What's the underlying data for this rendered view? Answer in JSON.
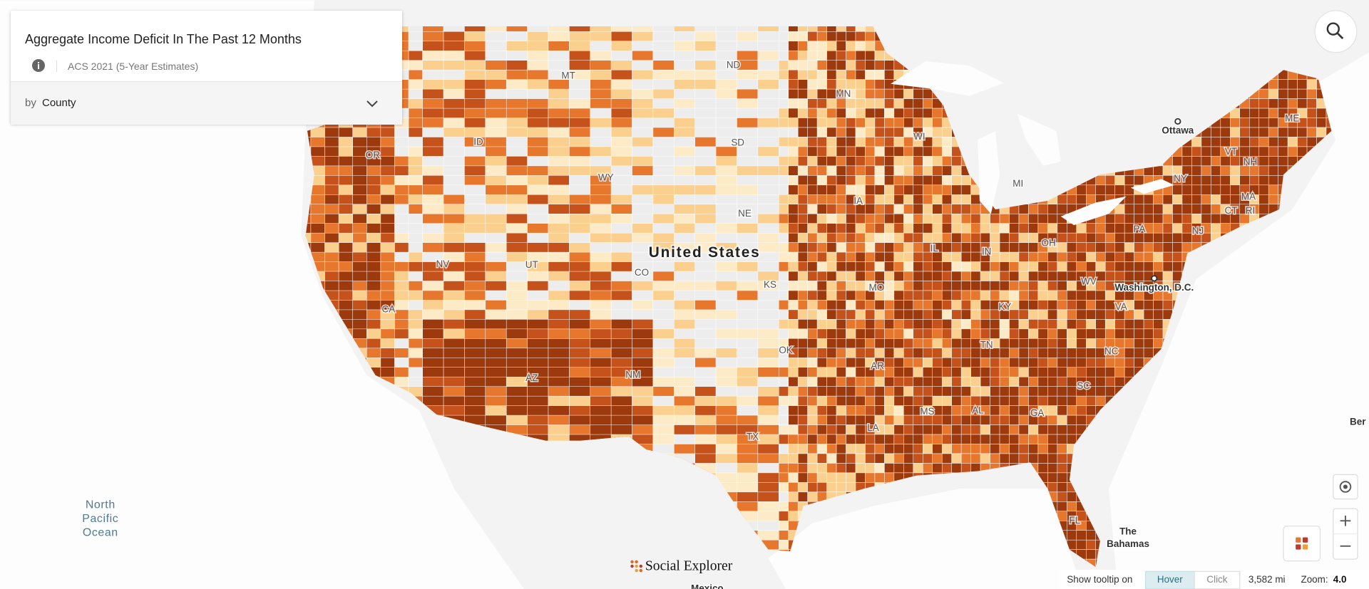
{
  "panel": {
    "title": "Aggregate Income Deficit In The Past 12 Months",
    "source": "ACS 2021 (5-Year Estimates)",
    "by": "by",
    "level": "County"
  },
  "map": {
    "country": "United States",
    "states": [
      "MT",
      "ND",
      "MN",
      "ID",
      "SD",
      "WY",
      "OR",
      "WI",
      "MI",
      "NE",
      "IA",
      "NV",
      "UT",
      "CO",
      "IL",
      "IN",
      "OH",
      "PA",
      "NY",
      "VT",
      "NH",
      "ME",
      "MA",
      "CT",
      "RI",
      "NJ",
      "KS",
      "MO",
      "WV",
      "KY",
      "VA",
      "CA",
      "TN",
      "NC",
      "OK",
      "AR",
      "AZ",
      "NM",
      "MS",
      "AL",
      "GA",
      "SC",
      "LA",
      "TX",
      "FL"
    ],
    "places": [
      "Ottawa",
      "Washington, D.C.",
      "The",
      "Bahamas",
      "Mexico",
      "Ber"
    ],
    "ocean": [
      "North",
      "Pacific",
      "Ocean"
    ]
  },
  "logo": "Social Explorer",
  "status": {
    "tooltip": "Show tooltip on",
    "hover": "Hover",
    "click": "Click",
    "scale": "3,582 mi",
    "zoom_label": "Zoom:",
    "zoom": "4.0"
  }
}
